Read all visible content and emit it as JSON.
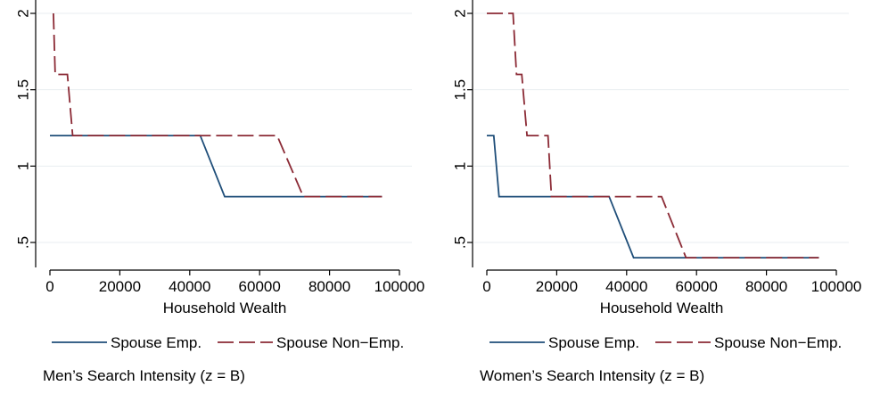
{
  "chart_data": [
    {
      "type": "line",
      "caption": "Men’s Search Intensity (z = B)",
      "xlabel": "Household Wealth",
      "ylabel": "",
      "xlim": [
        0,
        100000
      ],
      "ylim": [
        0.4,
        2.0
      ],
      "x_ticks": [
        0,
        20000,
        40000,
        60000,
        80000,
        100000
      ],
      "x_tick_labels": [
        "0",
        "20000",
        "40000",
        "60000",
        "80000",
        "100000"
      ],
      "y_ticks": [
        0.5,
        1,
        1.5,
        2
      ],
      "y_tick_labels": [
        ".5",
        "1",
        "1.5",
        "2"
      ],
      "grid": true,
      "legend_position": "bottom",
      "series": [
        {
          "name": "Spouse Emp.",
          "color": "#1f4e79",
          "style": "solid",
          "x": [
            0,
            43000,
            50000,
            95000
          ],
          "y": [
            1.2,
            1.2,
            0.8,
            0.8
          ]
        },
        {
          "name": "Spouse Non−Emp.",
          "color": "#8b2a35",
          "style": "dashed",
          "x": [
            1000,
            1500,
            5000,
            6500,
            65000,
            72500,
            95000
          ],
          "y": [
            2.0,
            1.6,
            1.6,
            1.2,
            1.2,
            0.8,
            0.8
          ]
        }
      ]
    },
    {
      "type": "line",
      "caption": "Women’s Search Intensity (z = B)",
      "xlabel": "Household Wealth",
      "ylabel": "",
      "xlim": [
        0,
        100000
      ],
      "ylim": [
        0.3,
        2.0
      ],
      "x_ticks": [
        0,
        20000,
        40000,
        60000,
        80000,
        100000
      ],
      "x_tick_labels": [
        "0",
        "20000",
        "40000",
        "60000",
        "80000",
        "100000"
      ],
      "y_ticks": [
        0.5,
        1,
        1.5,
        2
      ],
      "y_tick_labels": [
        ".5",
        "1",
        "1.5",
        "2"
      ],
      "grid": true,
      "legend_position": "bottom",
      "series": [
        {
          "name": "Spouse Emp.",
          "color": "#1f4e79",
          "style": "solid",
          "x": [
            0,
            2000,
            3500,
            35000,
            42000,
            95000
          ],
          "y": [
            1.2,
            1.2,
            0.8,
            0.8,
            0.4,
            0.4
          ]
        },
        {
          "name": "Spouse Non−Emp.",
          "color": "#8b2a35",
          "style": "dashed",
          "x": [
            0,
            7500,
            8500,
            10000,
            11500,
            17500,
            18500,
            50000,
            57000,
            95000
          ],
          "y": [
            2.0,
            2.0,
            1.6,
            1.6,
            1.2,
            1.2,
            0.8,
            0.8,
            0.4,
            0.4
          ]
        }
      ]
    }
  ]
}
